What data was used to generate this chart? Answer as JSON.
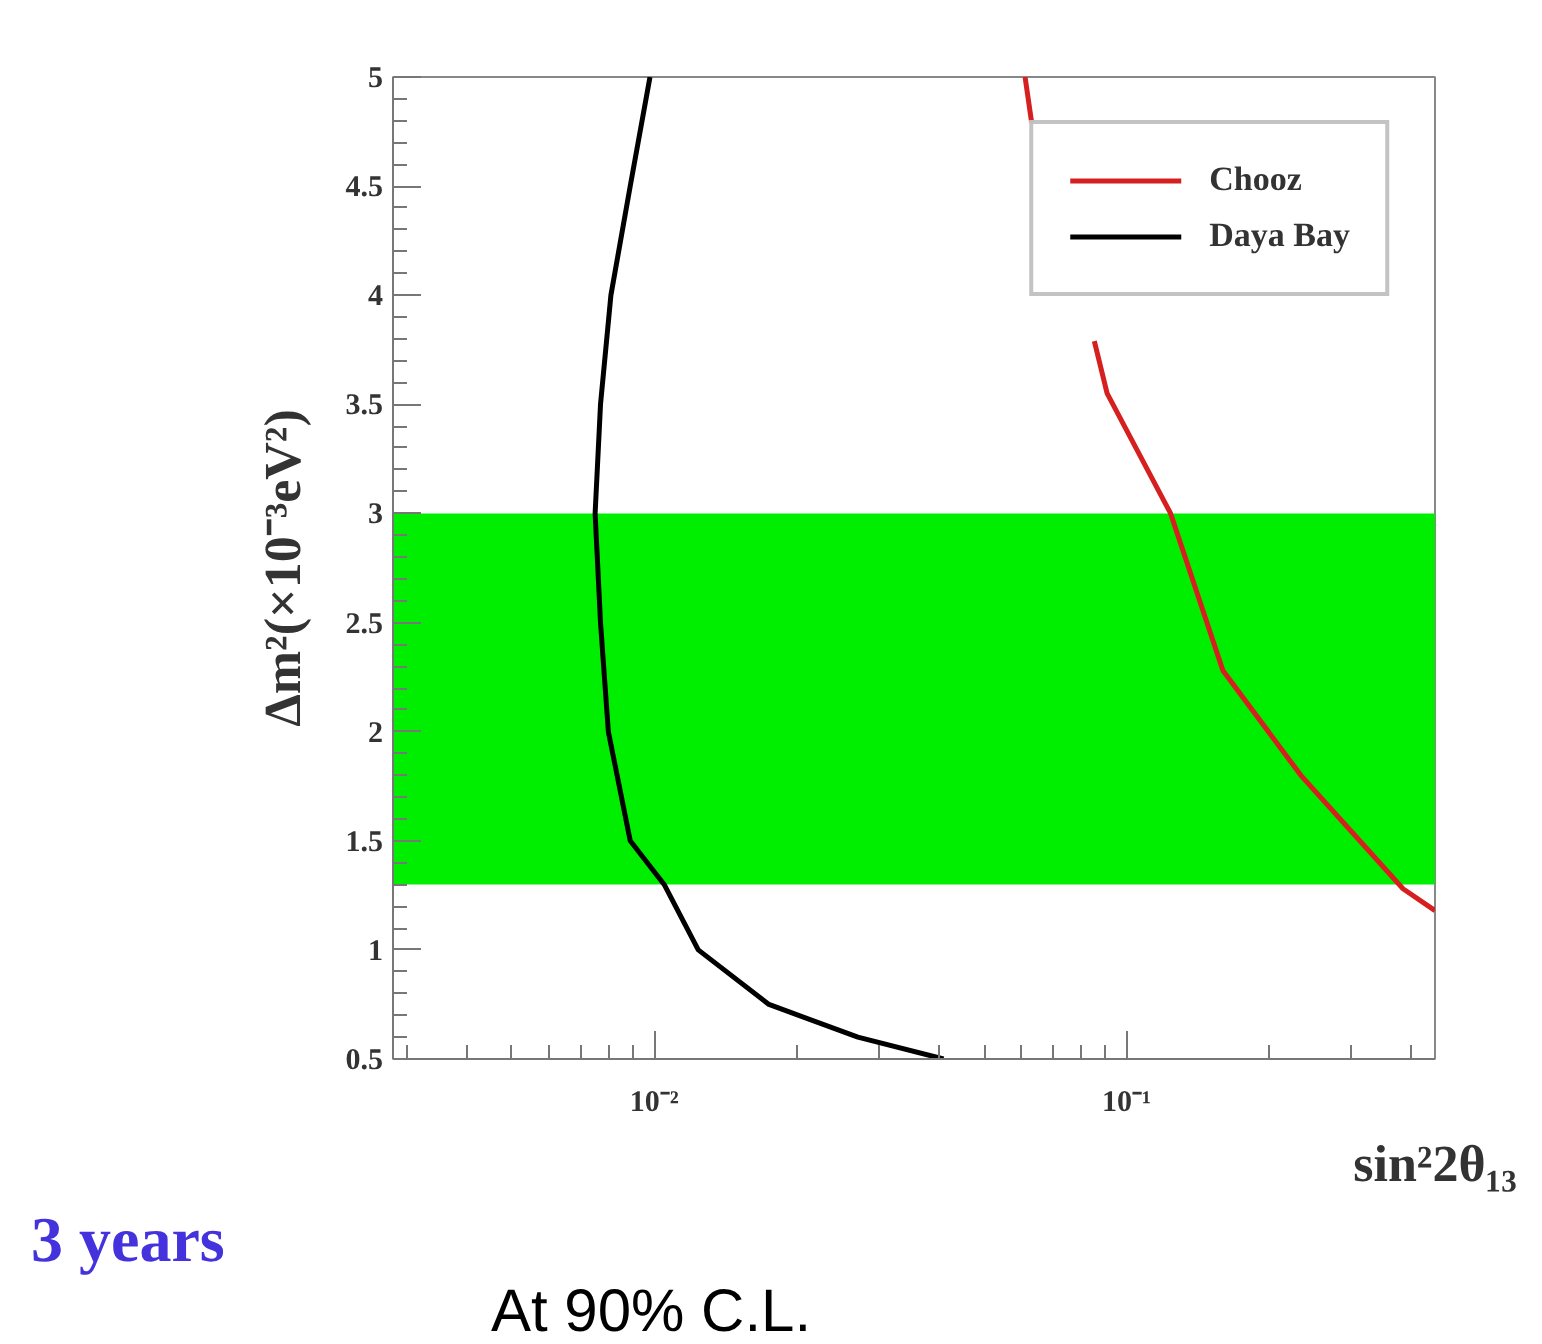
{
  "chart_data": {
    "type": "line",
    "xlabel": "sin²2θ₁₃",
    "ylabel": "Δm²(×10⁻³eV²)",
    "log": "x",
    "grid": false,
    "legend": "top right",
    "xlim": [
      0.0028,
      0.45
    ],
    "ylim": [
      0.5,
      5
    ],
    "xticks": [
      {
        "value": 0.01,
        "label": "10⁻²"
      },
      {
        "value": 0.1,
        "label": "10⁻¹"
      }
    ],
    "yticks": [
      0.5,
      1,
      1.5,
      2,
      2.5,
      3,
      3.5,
      4,
      4.5,
      5
    ],
    "bands": [
      {
        "axis": "y",
        "from": 1.3,
        "to": 3,
        "color": "#00ee00"
      }
    ],
    "series": [
      {
        "name": "Chooz",
        "color": "#d62020",
        "x": [
          0.061,
          0.063,
          null,
          0.0855,
          0.091,
          0.124,
          0.16,
          0.234,
          0.385,
          0.45
        ],
        "values": [
          5,
          4.79,
          null,
          3.79,
          3.55,
          3.0,
          2.28,
          1.8,
          1.28,
          1.18
        ]
      },
      {
        "name": "Daya Bay",
        "color": "#000000",
        "x": [
          0.0098,
          0.0089,
          0.0081,
          0.0077,
          0.0075,
          0.0077,
          0.008,
          0.0089,
          0.0105,
          0.0124,
          0.0175,
          0.027,
          0.041
        ],
        "values": [
          5,
          4.5,
          4,
          3.5,
          3,
          2.5,
          2,
          1.5,
          1.3,
          1,
          0.75,
          0.6,
          0.5
        ]
      }
    ],
    "annotations": [
      "3 years",
      "At 90% C.L."
    ]
  }
}
